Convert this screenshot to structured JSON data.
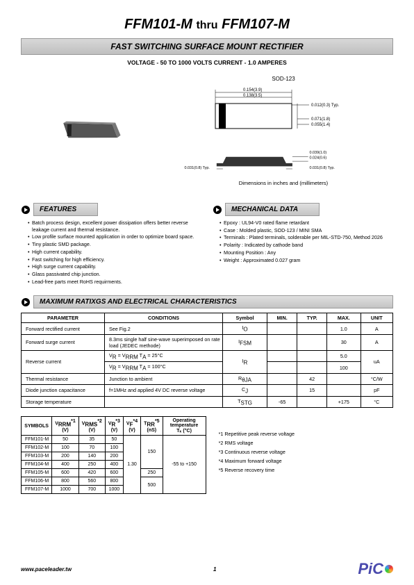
{
  "header": {
    "part_from": "FFM101-M",
    "thru": "thru",
    "part_to": "FFM107-M",
    "subtitle": "FAST SWITCHING SURFACE MOUNT RECTIFIER",
    "voltcurrent": "VOLTAGE - 50 TO 1000 VOLTS    CURRENT - 1.0 AMPERES"
  },
  "package": {
    "label": "SOD-123",
    "dimcaption": "Dimensions in inches and (millimeters)",
    "top": {
      "w": "0.154(3.9)",
      "w2": "0.138(3.5)",
      "t": "0.012(0.3) Typ.",
      "h1": "0.071(1.8)",
      "h2": "0.055(1.4)"
    },
    "side": {
      "a": "0.039(1.0)",
      "b": "0.024(0.6)",
      "l": "0.031(0.8) Typ.",
      "r": "0.031(0.8) Typ."
    },
    "chip_color": "#5a5a5a",
    "band_color": "#1a1a1a"
  },
  "features": {
    "title": "FEATURES",
    "items": [
      "Batch process design, excellent power dissipation offers better reverse leakage current and thermal resistance.",
      "Low profile surface mounted application in order to optimize board space.",
      "Tiny plastic SMD package.",
      "High current capability.",
      "Fast switching for high efficiency.",
      "High surge current capability.",
      "Glass passivated chip junction.",
      "Lead-free parts  meet RoHS requirments."
    ]
  },
  "mechdata": {
    "title": "MECHANICAL DATA",
    "items": [
      "Epoxy : UL94-V0 rated flame retardant",
      "Case : Molded plastic, SOD-123 / MINI SMA",
      "Terminals : Plated terminals, solderable per MIL-STD-750, Method 2026",
      "Polarity : Indicated by cathode band",
      "Mounting Position : Any",
      "Weight : Approximated 0.027 gram"
    ]
  },
  "ratingsTitle": "MAXIMUM RATIXGS AND ELECTRICAL CHARACTERISTICS",
  "ratings": {
    "headers": [
      "PARAMETER",
      "CONDITIONS",
      "Symbol",
      "MIN.",
      "TYP.",
      "MAX.",
      "UNIT"
    ],
    "rows": [
      {
        "param": "Forward rectified current",
        "cond": "See Fig.2",
        "sym": "I",
        "sub": "O",
        "min": "",
        "typ": "",
        "max": "1.0",
        "unit": "A"
      },
      {
        "param": "Forward surge current",
        "cond": "8.3ms single half sine-wave superimposed on rate load (JEDEC methode)",
        "sym": "I",
        "sub": "FSM",
        "min": "",
        "typ": "",
        "max": "30",
        "unit": "A"
      },
      {
        "param": "Reverse current",
        "cond": "Vᴿ = Vᴿᴿᴹ Tᴀ = 25°C",
        "sym": "I",
        "sub": "R",
        "min": "",
        "typ": "",
        "max": "5.0",
        "unit": "uA"
      },
      {
        "param": "",
        "cond": "Vᴿ = Vᴿᴿᴹ Tᴀ = 100°C",
        "sym": "",
        "sub": "",
        "min": "",
        "typ": "",
        "max": "100",
        "unit": ""
      },
      {
        "param": "Thermal resistance",
        "cond": "Junction to ambient",
        "sym": "R",
        "sub": "θJA",
        "min": "",
        "typ": "42",
        "max": "",
        "unit": "°C/W"
      },
      {
        "param": "Diode junction capacitance",
        "cond": "f=1MHz and applied 4V DC reverse voltage",
        "sym": "C",
        "sub": "J",
        "min": "",
        "typ": "15",
        "max": "",
        "unit": "pF"
      },
      {
        "param": "Storage temperature",
        "cond": "",
        "sym": "T",
        "sub": "STG",
        "min": "-65",
        "typ": "",
        "max": "+175",
        "unit": "°C"
      }
    ]
  },
  "grid": {
    "headers": [
      {
        "label": "SYMBOLS"
      },
      {
        "label": "V",
        "sub": "RRM",
        "sup": "*1",
        "unit": "(V)"
      },
      {
        "label": "V",
        "sub": "RMS",
        "sup": "*2",
        "unit": "(V)"
      },
      {
        "label": "V",
        "sub": "R",
        "sup": "*3",
        "unit": "(V)"
      },
      {
        "label": "V",
        "sub": "F",
        "sup": "*4",
        "unit": "(V)"
      },
      {
        "label": "T",
        "sub": "RR",
        "sup": "*5",
        "unit": "(nS)"
      },
      {
        "label": "Operating temperature",
        "sub": "",
        "sup": "",
        "unit": "Tₖ (°C)"
      }
    ],
    "parts": [
      "FFM101-M",
      "FFM102-M",
      "FFM103-M",
      "FFM104-M",
      "FFM105-M",
      "FFM106-M",
      "FFM107-M"
    ],
    "vrrm": [
      "50",
      "100",
      "200",
      "400",
      "600",
      "800",
      "1000"
    ],
    "vrms": [
      "35",
      "70",
      "140",
      "250",
      "420",
      "560",
      "700"
    ],
    "vr": [
      "50",
      "100",
      "200",
      "400",
      "600",
      "800",
      "1000"
    ],
    "vf": "1.30",
    "trr1": "150",
    "trr2": "250",
    "trr3": "500",
    "optemp": "-55 to +150"
  },
  "notes": [
    "*1  Repetitive peak reverse voltage",
    "*2  RMS voltage",
    "*3  Continuous reverse voltage",
    "*4  Maximum forward voltage",
    "*5  Reverse recovery time"
  ],
  "footer": {
    "url": "www.paceleader.tw",
    "pageno": "1"
  }
}
